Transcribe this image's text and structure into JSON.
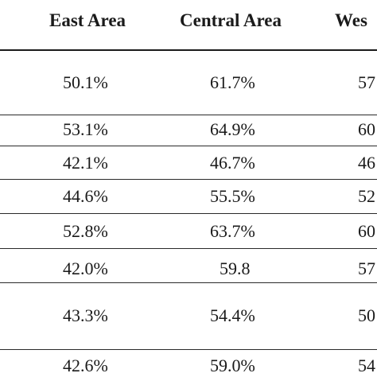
{
  "table": {
    "headers": [
      "East Area",
      "Central Area",
      "Wes"
    ],
    "rows": [
      [
        "50.1%",
        "61.7%",
        "57"
      ],
      [
        "53.1%",
        "64.9%",
        "60"
      ],
      [
        "42.1%",
        "46.7%",
        "46"
      ],
      [
        "44.6%",
        "55.5%",
        "52"
      ],
      [
        "52.8%",
        "63.7%",
        "60"
      ],
      [
        "42.0%",
        "59.8",
        "57"
      ],
      [
        "43.3%",
        "54.4%",
        "50"
      ],
      [
        "42.6%",
        "59.0%",
        "54"
      ]
    ]
  }
}
